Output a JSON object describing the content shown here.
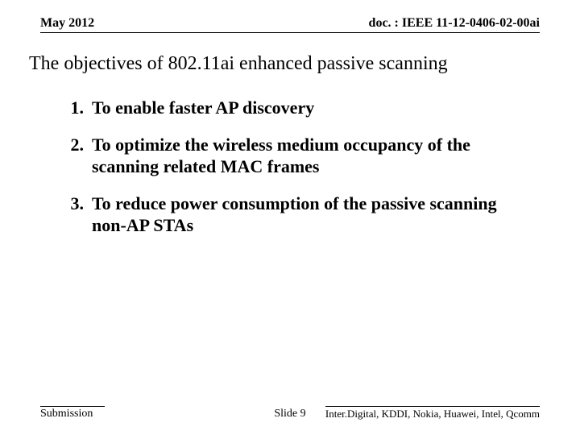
{
  "header": {
    "date": "May 2012",
    "doc": "doc. : IEEE 11-12-0406-02-00ai"
  },
  "title": "The objectives of  802.11ai enhanced passive scanning",
  "objectives": [
    {
      "num": "1.",
      "text": "To enable faster AP discovery"
    },
    {
      "num": "2.",
      "text": "To optimize the wireless medium occupancy of the scanning related MAC frames"
    },
    {
      "num": "3.",
      "text": "To reduce power consumption of the passive scanning non-AP STAs"
    }
  ],
  "footer": {
    "left": "Submission",
    "center": "Slide 9",
    "right": "Inter.Digital, KDDI, Nokia, Huawei, Intel, Qcomm"
  }
}
